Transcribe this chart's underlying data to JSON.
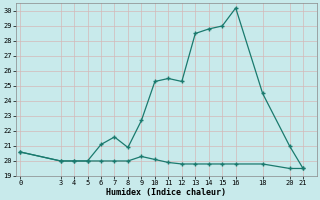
{
  "xlabel": "Humidex (Indice chaleur)",
  "bg_color": "#c8eaeb",
  "grid_major_color": "#b8d8d8",
  "grid_minor_color": "#ffffff",
  "line_color": "#1a7a6e",
  "ylim": [
    19,
    30.5
  ],
  "yticks": [
    19,
    20,
    21,
    22,
    23,
    24,
    25,
    26,
    27,
    28,
    29,
    30
  ],
  "xticks": [
    0,
    3,
    4,
    5,
    6,
    7,
    8,
    9,
    10,
    11,
    12,
    13,
    14,
    15,
    16,
    18,
    20,
    21
  ],
  "xlim": [
    -0.3,
    22.0
  ],
  "line1_x": [
    0,
    3,
    4,
    5,
    6,
    7,
    8,
    9,
    10,
    11,
    12,
    13,
    14,
    15,
    16,
    18,
    20,
    21
  ],
  "line1_y": [
    20.6,
    20.0,
    20.0,
    20.0,
    21.1,
    21.6,
    20.9,
    22.7,
    25.3,
    25.5,
    25.3,
    28.5,
    28.8,
    29.0,
    30.2,
    24.5,
    21.0,
    19.5
  ],
  "line2_x": [
    0,
    3,
    4,
    5,
    6,
    7,
    8,
    9,
    10,
    11,
    12,
    13,
    14,
    15,
    16,
    18,
    20,
    21
  ],
  "line2_y": [
    20.6,
    20.0,
    20.0,
    20.0,
    20.0,
    20.0,
    20.0,
    20.3,
    20.1,
    19.9,
    19.8,
    19.8,
    19.8,
    19.8,
    19.8,
    19.8,
    19.5,
    19.5
  ],
  "figsize": [
    3.2,
    2.0
  ],
  "dpi": 100
}
